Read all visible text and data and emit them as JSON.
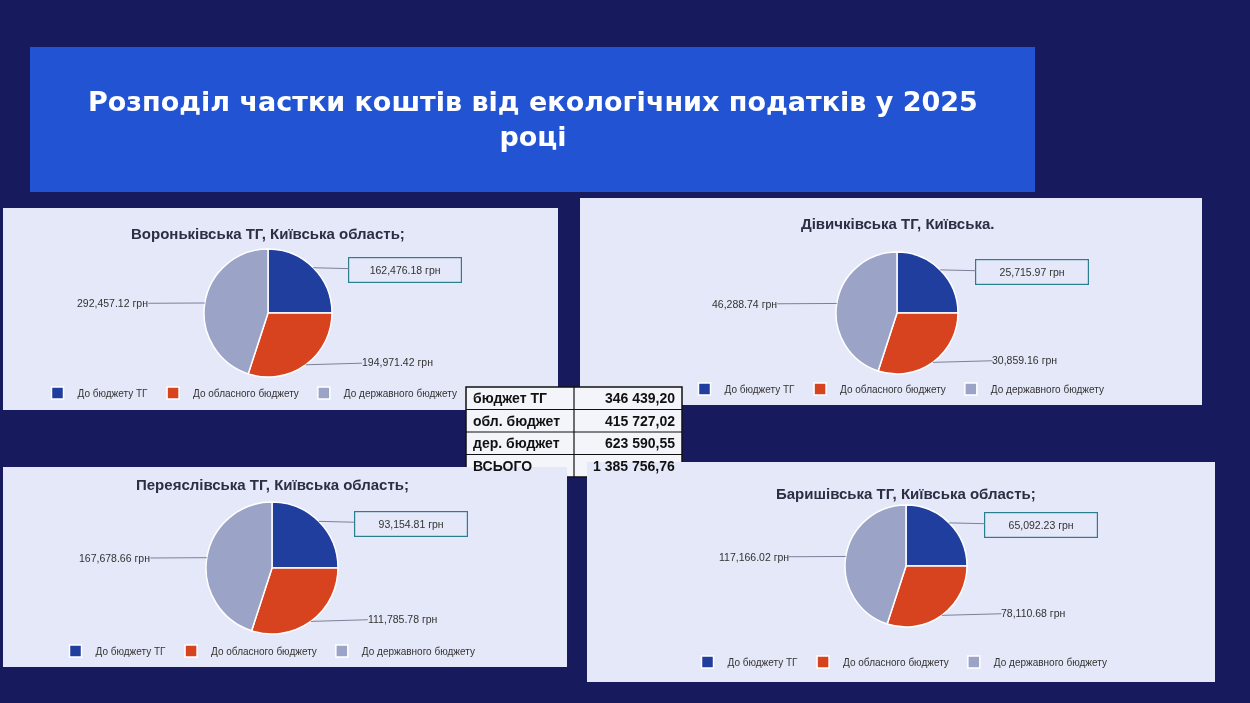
{
  "chart_data": [
    {
      "type": "other",
      "title": "Розподіл частки коштів від екологічних податків у 2025 році"
    },
    {
      "type": "pie",
      "title": "Вороньківська ТГ, Київська область;",
      "categories": [
        "До бюджету ТГ",
        "До обласного бюджету",
        "До державного бюджету"
      ],
      "values": [
        162476.18,
        194971.42,
        292457.12
      ],
      "colors": [
        "#1f3e9e",
        "#d8431f",
        "#9ba4c6"
      ],
      "value_labels": [
        "162,476.18 грн",
        "194,971.42 грн",
        "292,457.12 грн"
      ],
      "legend": "bottom"
    },
    {
      "type": "pie",
      "title": "Дівичківська ТГ, Київська.",
      "categories": [
        "До бюджету ТГ",
        "До обласного бюджету",
        "До державного бюджету"
      ],
      "values": [
        25715.97,
        30859.16,
        46288.74
      ],
      "colors": [
        "#1f3e9e",
        "#d8431f",
        "#9ba4c6"
      ],
      "value_labels": [
        "25,715.97 грн",
        "30,859.16 грн",
        "46,288.74 грн"
      ],
      "legend": "bottom"
    },
    {
      "type": "other",
      "categories": [
        "бюджет ТГ",
        "обл. бюджет",
        "дер. бюджет",
        "ВСЬОГО"
      ],
      "values": [
        346439.2,
        415727.02,
        623590.55,
        1385756.76
      ],
      "value_labels": [
        "346 439,20",
        "415 727,02",
        "623 590,55",
        "1 385 756,76"
      ]
    },
    {
      "type": "pie",
      "title": "Переяслівська ТГ, Київська область;",
      "categories": [
        "До бюджету ТГ",
        "До обласного бюджету",
        "До державного бюджету"
      ],
      "values": [
        93154.81,
        111785.78,
        167678.66
      ],
      "colors": [
        "#1f3e9e",
        "#d8431f",
        "#9ba4c6"
      ],
      "value_labels": [
        "93,154.81 грн",
        "111,785.78 грн",
        "167,678.66 грн"
      ],
      "legend": "bottom"
    },
    {
      "type": "pie",
      "title": "Баришівська ТГ, Київська область;",
      "categories": [
        "До бюджету ТГ",
        "До обласного бюджету",
        "До державного бюджету"
      ],
      "values": [
        65092.23,
        78110.68,
        117166.02
      ],
      "colors": [
        "#1f3e9e",
        "#d8431f",
        "#9ba4c6"
      ],
      "value_labels": [
        "65,092.23 грн",
        "78,110.68 грн",
        "117,166.02 грн"
      ],
      "legend": "bottom"
    }
  ]
}
